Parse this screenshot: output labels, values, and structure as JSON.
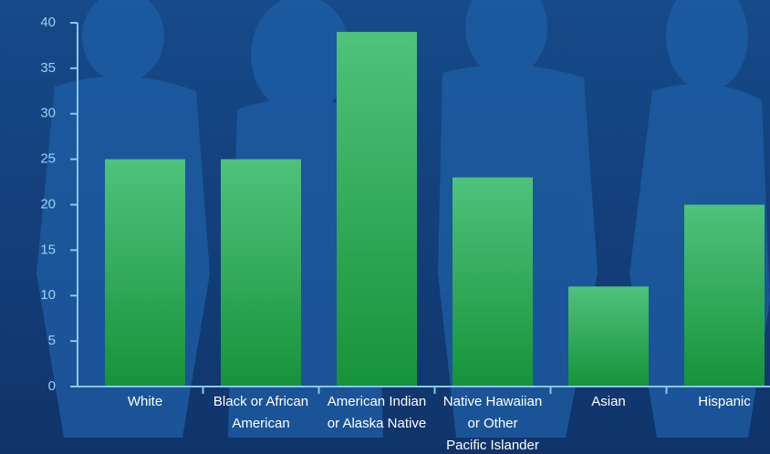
{
  "chart_data": {
    "type": "bar",
    "categories": [
      [
        "White"
      ],
      [
        "Black or African",
        "American"
      ],
      [
        "American Indian",
        "or Alaska Native"
      ],
      [
        "Native Hawaiian",
        "or Other",
        "Pacific Islander"
      ],
      [
        "Asian"
      ],
      [
        "Hispanic"
      ]
    ],
    "values": [
      25,
      25,
      39,
      23,
      11,
      20
    ],
    "color": "#2aa84f",
    "ylim": [
      0,
      40
    ],
    "yticks": [
      0,
      5,
      10,
      15,
      20,
      25,
      30,
      35,
      40
    ],
    "grid": false
  }
}
